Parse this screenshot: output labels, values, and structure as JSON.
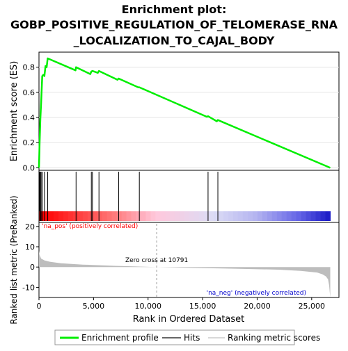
{
  "title_line1": "Enrichment plot:",
  "title_line2": "GOBP_POSITIVE_REGULATION_OF_TELOMERASE_RNA",
  "title_line3": "_LOCALIZATION_TO_CAJAL_BODY",
  "colors": {
    "es_line": "#00ee00",
    "hits": "#000000",
    "metric_fill": "#bdbdbd",
    "pos_label": "#ff0000",
    "neg_label": "#0000cc"
  },
  "chart_data": {
    "type": "line",
    "es_panel": {
      "ylabel": "Enrichment score (ES)",
      "ylim": [
        0,
        0.9
      ],
      "yticks": [
        "0.0",
        "0.2",
        "0.4",
        "0.6",
        "0.8"
      ],
      "ytick_values": [
        0,
        0.2,
        0.4,
        0.6,
        0.8
      ],
      "series": [
        {
          "x": [
            0,
            60,
            130,
            200,
            300,
            400,
            500,
            600,
            700,
            800,
            3350,
            3400,
            4700,
            4800,
            4900,
            5400,
            5500,
            7200,
            7300,
            9100,
            9200,
            15400,
            15500,
            16300,
            16400,
            26700
          ],
          "y": [
            0,
            0.2,
            0.39,
            0.52,
            0.73,
            0.74,
            0.73,
            0.81,
            0.8,
            0.87,
            0.775,
            0.8,
            0.745,
            0.765,
            0.77,
            0.755,
            0.77,
            0.7,
            0.71,
            0.64,
            0.64,
            0.405,
            0.41,
            0.37,
            0.38,
            0.0
          ]
        }
      ]
    },
    "hits": [
      60,
      130,
      200,
      300,
      500,
      800,
      3400,
      4800,
      4900,
      5500,
      7300,
      9200,
      15500,
      16400
    ],
    "metric_panel": {
      "ylabel": "Ranked list metric (PreRanked)",
      "ylim": [
        -15,
        22
      ],
      "yticks": [
        "20",
        "10",
        "0",
        "-10"
      ],
      "ytick_values": [
        20,
        10,
        0,
        -10
      ],
      "x": [
        0,
        50,
        200,
        500,
        1000,
        2000,
        4000,
        7000,
        10791,
        14000,
        18000,
        22000,
        24000,
        25500,
        26000,
        26300,
        26500,
        26600,
        26700
      ],
      "y": [
        8.0,
        6.0,
        4.2,
        3.3,
        2.6,
        1.9,
        1.2,
        0.6,
        0.0,
        -0.4,
        -0.8,
        -1.3,
        -1.9,
        -2.7,
        -3.6,
        -4.6,
        -6.0,
        -9.0,
        -15.0
      ],
      "zero_cross_label": "Zero cross at 10791",
      "zero_cross": 10791,
      "pos_label": "'na_pos' (positively correlated)",
      "neg_label": "'na_neg' (negatively correlated)"
    },
    "xaxis": {
      "xlabel": "Rank in Ordered Dataset",
      "xlim": [
        0,
        27500
      ],
      "xtick_values": [
        0,
        5000,
        10000,
        15000,
        20000,
        25000
      ],
      "xticks": [
        "0",
        "5,000",
        "10,000",
        "15,000",
        "20,000",
        "25,000"
      ],
      "dataset_size": 26700
    },
    "legend": [
      {
        "label": "Enrichment profile",
        "marker": "green-line"
      },
      {
        "label": "Hits",
        "marker": "black-tick"
      },
      {
        "label": "Ranking metric scores",
        "marker": "gray-line"
      }
    ]
  }
}
